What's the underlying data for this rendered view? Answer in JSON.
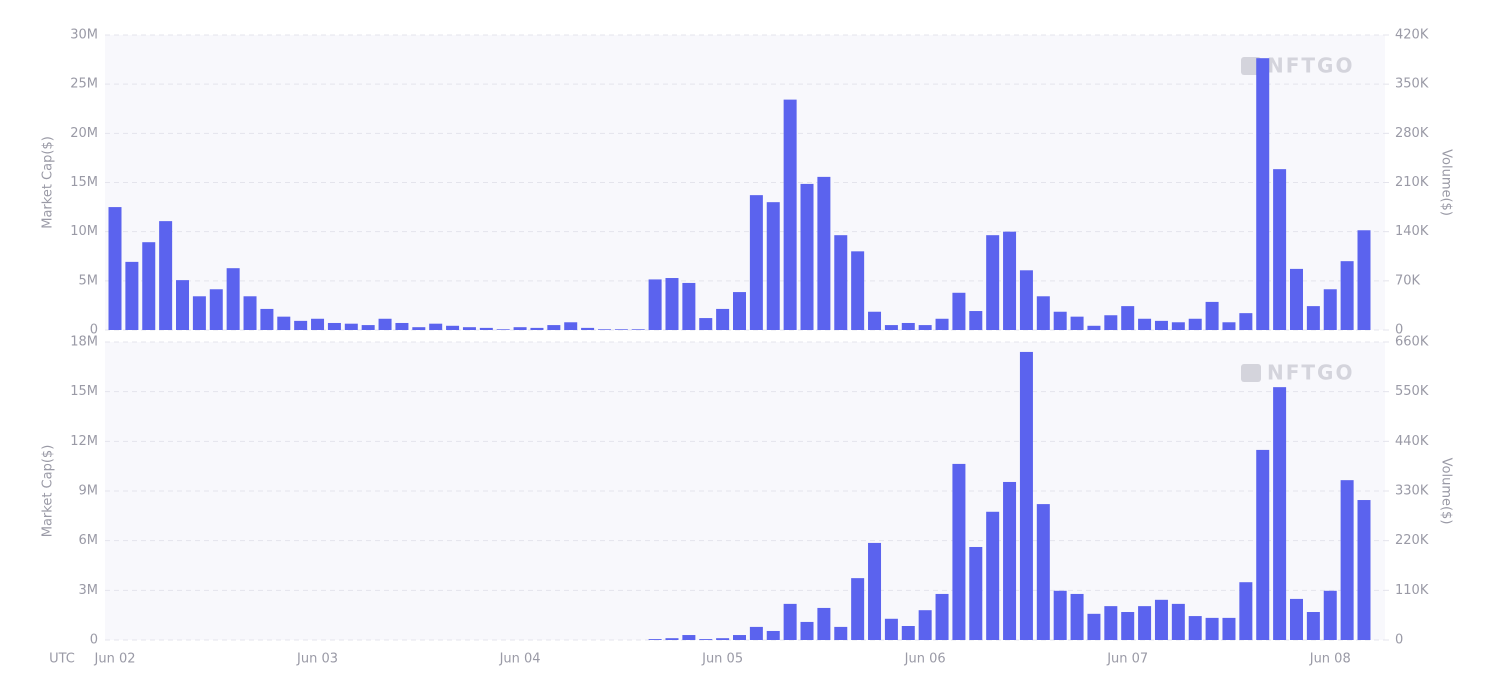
{
  "chart_data": [
    {
      "type": "bar",
      "watermark": "NFTGO",
      "ylabel": "Market Cap($)",
      "y2label": "Volume($)",
      "ylim": [
        0,
        30000000
      ],
      "yticks": [
        0,
        {
          "value": 5000000,
          "label": "5M"
        },
        {
          "value": 10000000,
          "label": "10M"
        },
        {
          "value": 15000000,
          "label": "15M"
        },
        {
          "value": 20000000,
          "label": "20M"
        },
        {
          "value": 25000000,
          "label": "25M"
        },
        {
          "value": 30000000,
          "label": "30M"
        }
      ],
      "y2lim": [
        0,
        420000
      ],
      "y2ticks": [
        0,
        {
          "value": 70000,
          "label": "70K"
        },
        {
          "value": 140000,
          "label": "140K"
        },
        {
          "value": 210000,
          "label": "210K"
        },
        {
          "value": 280000,
          "label": "280K"
        },
        {
          "value": 350000,
          "label": "350K"
        },
        {
          "value": 420000,
          "label": "420K"
        }
      ],
      "grid": true,
      "series": [
        {
          "color": "#5b63ee",
          "axis": "y2",
          "values": [
            175000,
            97000,
            125000,
            155000,
            71000,
            48000,
            58000,
            88000,
            48000,
            30000,
            19000,
            13000,
            16000,
            10000,
            9000,
            7000,
            16000,
            10000,
            4000,
            9000,
            6000,
            4000,
            3000,
            1000,
            4000,
            3000,
            7000,
            11000,
            3000,
            1000,
            1000,
            1000,
            72000,
            74000,
            67000,
            17000,
            30000,
            54000,
            192000,
            182000,
            328000,
            208000,
            218000,
            135000,
            112000,
            26000,
            7000,
            10000,
            7000,
            16000,
            53000,
            27000,
            135000,
            140000,
            85000,
            48000,
            26000,
            19000,
            6000,
            21000,
            34000,
            16000,
            13000,
            11000,
            16000,
            40000,
            11000,
            24000,
            387000,
            229000,
            87000,
            34000,
            58000,
            98000,
            142000
          ]
        }
      ]
    },
    {
      "type": "bar",
      "watermark": "NFTGO",
      "ylabel": "Market Cap($)",
      "y2label": "Volume($)",
      "xlabel": "UTC",
      "categories": [
        "Jun 02",
        null,
        null,
        null,
        null,
        null,
        null,
        null,
        null,
        null,
        null,
        null,
        "Jun 03",
        null,
        null,
        null,
        null,
        null,
        null,
        null,
        null,
        null,
        null,
        null,
        "Jun 04",
        null,
        null,
        null,
        null,
        null,
        null,
        null,
        null,
        null,
        null,
        null,
        "Jun 05",
        null,
        null,
        null,
        null,
        null,
        null,
        null,
        null,
        null,
        null,
        null,
        "Jun 06",
        null,
        null,
        null,
        null,
        null,
        null,
        null,
        null,
        null,
        null,
        null,
        "Jun 07",
        null,
        null,
        null,
        null,
        null,
        null,
        null,
        null,
        null,
        null,
        null,
        "Jun 08",
        null,
        null
      ],
      "ylim": [
        0,
        18000000
      ],
      "yticks": [
        0,
        {
          "value": 3000000,
          "label": "3M"
        },
        {
          "value": 6000000,
          "label": "6M"
        },
        {
          "value": 9000000,
          "label": "9M"
        },
        {
          "value": 12000000,
          "label": "12M"
        },
        {
          "value": 15000000,
          "label": "15M"
        },
        {
          "value": 18000000,
          "label": "18M"
        }
      ],
      "y2lim": [
        0,
        660000
      ],
      "y2ticks": [
        0,
        {
          "value": 110000,
          "label": "110K"
        },
        {
          "value": 220000,
          "label": "220K"
        },
        {
          "value": 330000,
          "label": "330K"
        },
        {
          "value": 440000,
          "label": "440K"
        },
        {
          "value": 550000,
          "label": "550K"
        },
        {
          "value": 660000,
          "label": "660K"
        }
      ],
      "grid": true,
      "series": [
        {
          "color": "#5b63ee",
          "axis": "y2",
          "values": [
            0,
            0,
            0,
            0,
            0,
            0,
            0,
            0,
            0,
            0,
            0,
            0,
            0,
            0,
            0,
            0,
            0,
            0,
            0,
            0,
            0,
            0,
            0,
            0,
            0,
            0,
            0,
            0,
            0,
            0,
            0,
            0,
            2000,
            4000,
            11000,
            2000,
            4000,
            11000,
            29000,
            20000,
            80000,
            40000,
            71000,
            29000,
            137000,
            215000,
            47000,
            31000,
            66000,
            102000,
            390000,
            206000,
            284000,
            350000,
            638000,
            301000,
            109000,
            102000,
            58000,
            75000,
            62000,
            75000,
            89000,
            80000,
            53000,
            49000,
            49000,
            128000,
            421000,
            560000,
            91000,
            62000,
            109000,
            354000,
            310000
          ]
        }
      ]
    }
  ]
}
